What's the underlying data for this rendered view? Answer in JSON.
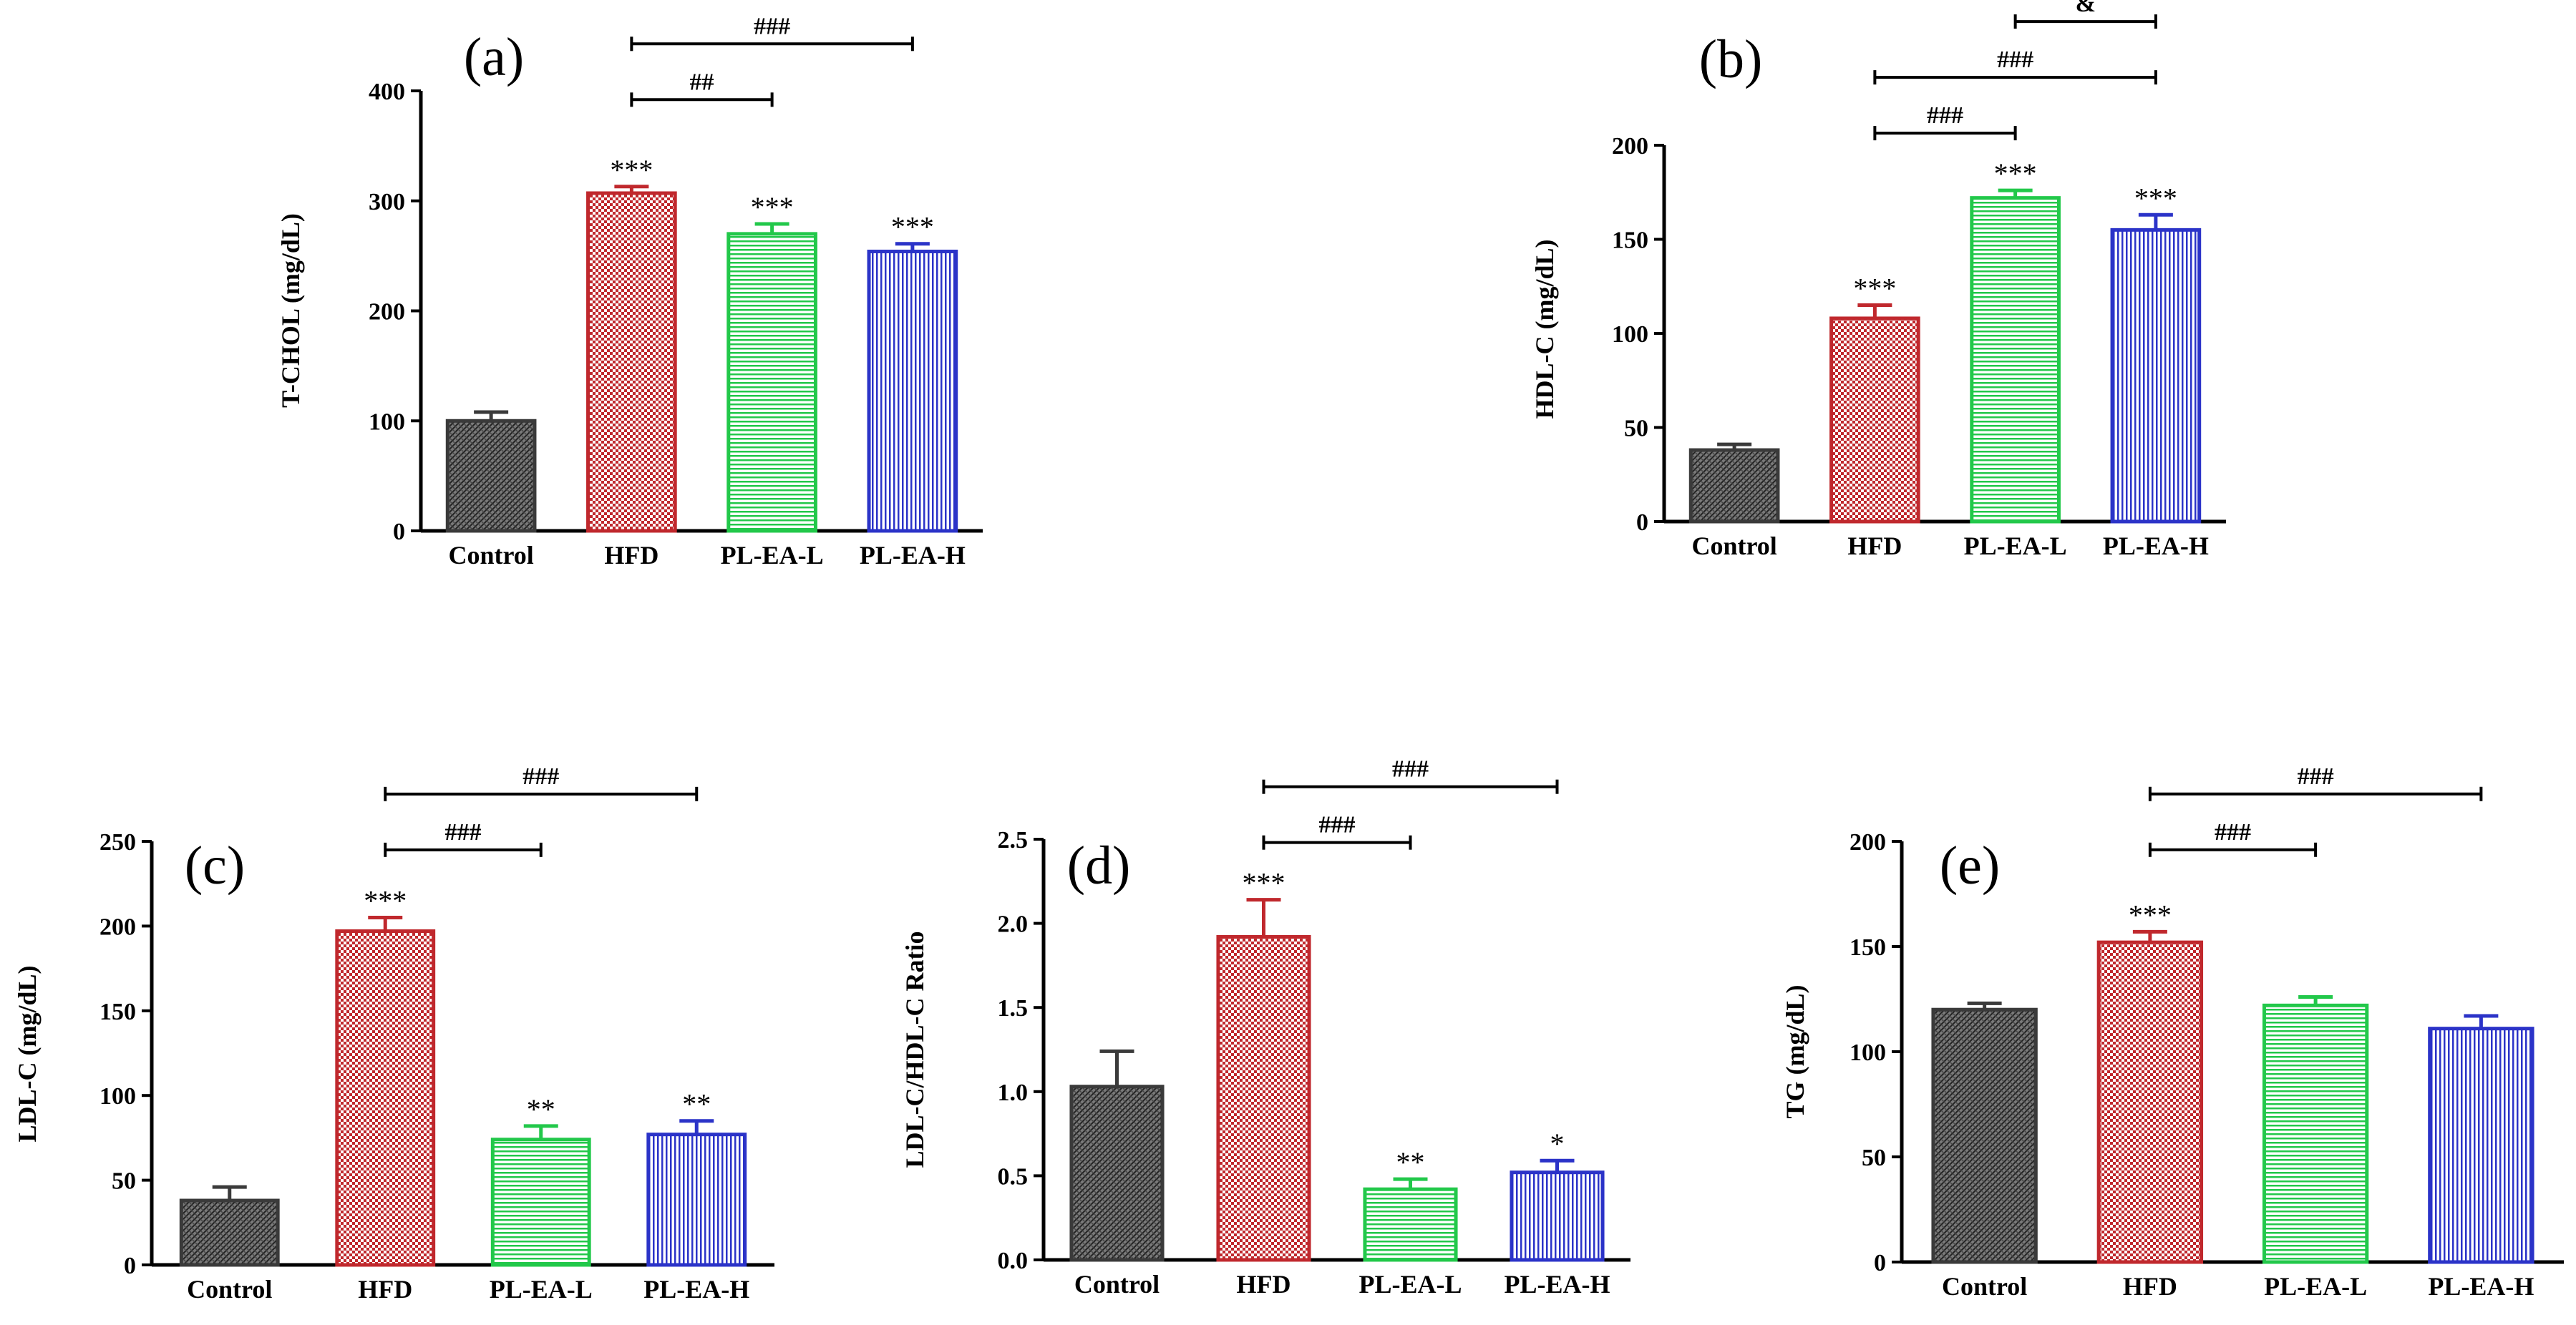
{
  "chart_data": [
    {
      "id": "a",
      "type": "bar",
      "panel_label": "(a)",
      "categories": [
        "Control",
        "HFD",
        "PL-EA-L",
        "PL-EA-H"
      ],
      "values": [
        100,
        307,
        270,
        254
      ],
      "errors": [
        8,
        6,
        9,
        7
      ],
      "stars": [
        "",
        "***",
        "***",
        "***"
      ],
      "ylabel": "T-CHOL (mg/dL)",
      "ylim": [
        0,
        400
      ],
      "ticks": [
        "0",
        "100",
        "200",
        "300",
        "400"
      ],
      "tick_values": [
        0,
        100,
        200,
        300,
        400
      ],
      "comparisons": [
        {
          "from": 1,
          "to": 2,
          "label": "##"
        },
        {
          "from": 1,
          "to": 3,
          "label": "###"
        }
      ]
    },
    {
      "id": "b",
      "type": "bar",
      "panel_label": "(b)",
      "categories": [
        "Control",
        "HFD",
        "PL-EA-L",
        "PL-EA-H"
      ],
      "values": [
        38,
        108,
        172,
        155
      ],
      "errors": [
        3,
        7,
        4,
        8
      ],
      "stars": [
        "",
        "***",
        "***",
        "***"
      ],
      "ylabel": "HDL-C (mg/dL)",
      "ylim": [
        0,
        200
      ],
      "ticks": [
        "0",
        "50",
        "100",
        "150",
        "200"
      ],
      "tick_values": [
        0,
        50,
        100,
        150,
        200
      ],
      "comparisons": [
        {
          "from": 1,
          "to": 2,
          "label": "###"
        },
        {
          "from": 1,
          "to": 3,
          "label": "###"
        },
        {
          "from": 2,
          "to": 3,
          "label": "&"
        }
      ]
    },
    {
      "id": "c",
      "type": "bar",
      "panel_label": "(c)",
      "categories": [
        "Control",
        "HFD",
        "PL-EA-L",
        "PL-EA-H"
      ],
      "values": [
        38,
        197,
        74,
        77
      ],
      "errors": [
        8,
        8,
        8,
        8
      ],
      "stars": [
        "",
        "***",
        "**",
        "**"
      ],
      "ylabel": "LDL-C (mg/dL)",
      "ylim": [
        0,
        250
      ],
      "ticks": [
        "0",
        "50",
        "100",
        "150",
        "200",
        "250"
      ],
      "tick_values": [
        0,
        50,
        100,
        150,
        200,
        250
      ],
      "comparisons": [
        {
          "from": 1,
          "to": 2,
          "label": "###"
        },
        {
          "from": 1,
          "to": 3,
          "label": "###"
        }
      ]
    },
    {
      "id": "d",
      "type": "bar",
      "panel_label": "(d)",
      "categories": [
        "Control",
        "HFD",
        "PL-EA-L",
        "PL-EA-H"
      ],
      "values": [
        1.03,
        1.92,
        0.42,
        0.52
      ],
      "errors": [
        0.21,
        0.22,
        0.06,
        0.07
      ],
      "stars": [
        "",
        "***",
        "**",
        "*"
      ],
      "ylabel": "LDL-C/HDL-C Ratio",
      "ylim": [
        0,
        2.5
      ],
      "ticks": [
        "0.0",
        "0.5",
        "1.0",
        "1.5",
        "2.0",
        "2.5"
      ],
      "tick_values": [
        0,
        0.5,
        1.0,
        1.5,
        2.0,
        2.5
      ],
      "comparisons": [
        {
          "from": 1,
          "to": 2,
          "label": "###"
        },
        {
          "from": 1,
          "to": 3,
          "label": "###"
        }
      ]
    },
    {
      "id": "e",
      "type": "bar",
      "panel_label": "(e)",
      "categories": [
        "Control",
        "HFD",
        "PL-EA-L",
        "PL-EA-H"
      ],
      "values": [
        120,
        152,
        122,
        111
      ],
      "errors": [
        3,
        5,
        4,
        6
      ],
      "stars": [
        "",
        "***",
        "",
        ""
      ],
      "ylabel": "TG (mg/dL)",
      "ylim": [
        0,
        200
      ],
      "ticks": [
        "0",
        "50",
        "100",
        "150",
        "200"
      ],
      "tick_values": [
        0,
        50,
        100,
        150,
        200
      ],
      "comparisons": [
        {
          "from": 1,
          "to": 2,
          "label": "###"
        },
        {
          "from": 1,
          "to": 3,
          "label": "###"
        }
      ]
    }
  ],
  "colors": {
    "control": "#3a3a3a",
    "hfd": "#c0282d",
    "pl_ea_l": "#22c84a",
    "pl_ea_h": "#2b33c8",
    "axis": "#000000"
  }
}
